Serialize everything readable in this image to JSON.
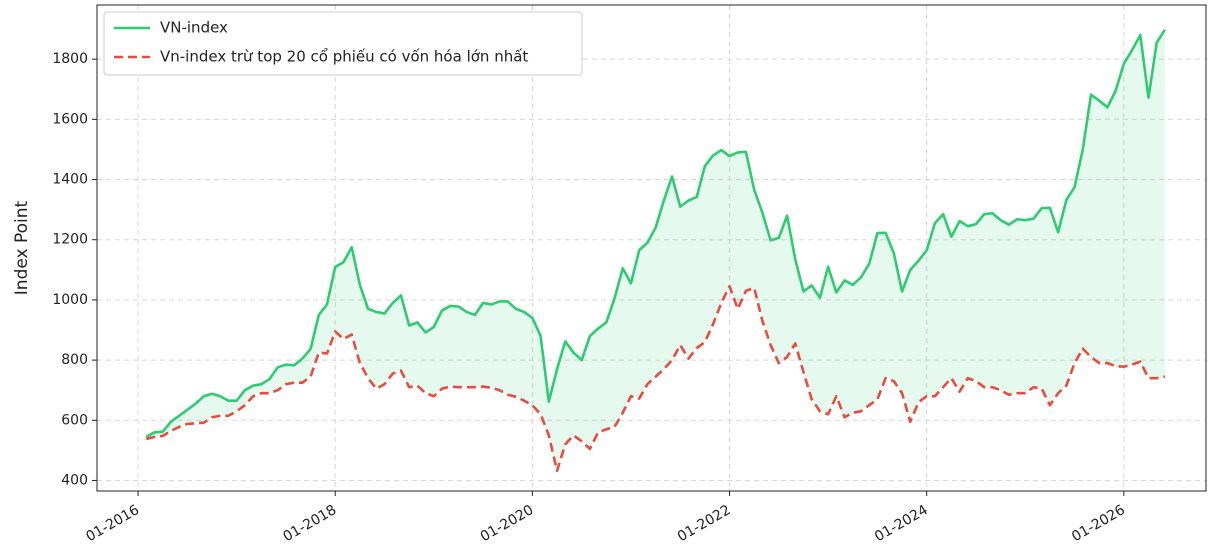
{
  "chart_data": {
    "type": "line",
    "ylabel": "Index Point",
    "x": [
      "02-2016",
      "03-2016",
      "04-2016",
      "05-2016",
      "06-2016",
      "07-2016",
      "08-2016",
      "09-2016",
      "10-2016",
      "11-2016",
      "12-2016",
      "01-2017",
      "02-2017",
      "03-2017",
      "04-2017",
      "05-2017",
      "06-2017",
      "07-2017",
      "08-2017",
      "09-2017",
      "10-2017",
      "11-2017",
      "12-2017",
      "01-2018",
      "02-2018",
      "03-2018",
      "04-2018",
      "05-2018",
      "06-2018",
      "07-2018",
      "08-2018",
      "09-2018",
      "10-2018",
      "11-2018",
      "12-2018",
      "01-2019",
      "02-2019",
      "03-2019",
      "04-2019",
      "05-2019",
      "06-2019",
      "07-2019",
      "08-2019",
      "09-2019",
      "10-2019",
      "11-2019",
      "12-2019",
      "01-2020",
      "02-2020",
      "03-2020",
      "04-2020",
      "05-2020",
      "06-2020",
      "07-2020",
      "08-2020",
      "09-2020",
      "10-2020",
      "11-2020",
      "12-2020",
      "01-2021",
      "02-2021",
      "03-2021",
      "04-2021",
      "05-2021",
      "06-2021",
      "07-2021",
      "08-2021",
      "09-2021",
      "10-2021",
      "11-2021",
      "12-2021",
      "01-2022",
      "02-2022",
      "03-2022",
      "04-2022",
      "05-2022",
      "06-2022",
      "07-2022",
      "08-2022",
      "09-2022",
      "10-2022",
      "11-2022",
      "12-2022",
      "01-2023",
      "02-2023",
      "03-2023",
      "04-2023",
      "05-2023",
      "06-2023",
      "07-2023",
      "08-2023",
      "09-2023",
      "10-2023",
      "11-2023",
      "12-2023",
      "01-2024",
      "02-2024",
      "03-2024",
      "04-2024",
      "05-2024",
      "06-2024",
      "07-2024",
      "08-2024",
      "09-2024",
      "10-2024",
      "11-2024",
      "12-2024",
      "01-2025",
      "02-2025",
      "03-2025",
      "04-2025",
      "05-2025",
      "06-2025",
      "07-2025",
      "08-2025",
      "09-2025",
      "10-2025",
      "11-2025",
      "12-2025",
      "01-2026",
      "02-2026",
      "03-2026",
      "04-2026",
      "05-2026",
      "06-2026"
    ],
    "series": [
      {
        "name": "VN-index",
        "color": "#2ecc71",
        "dash": false,
        "values": [
          545,
          560,
          562,
          595,
          615,
          635,
          655,
          680,
          688,
          680,
          665,
          665,
          700,
          715,
          720,
          737,
          776,
          785,
          783,
          805,
          837,
          950,
          985,
          1110,
          1125,
          1175,
          1050,
          970,
          960,
          955,
          990,
          1015,
          915,
          925,
          892,
          910,
          965,
          980,
          978,
          960,
          950,
          990,
          985,
          995,
          995,
          970,
          960,
          940,
          880,
          662,
          770,
          862,
          825,
          800,
          880,
          905,
          925,
          1005,
          1105,
          1055,
          1165,
          1190,
          1240,
          1330,
          1410,
          1310,
          1330,
          1342,
          1445,
          1480,
          1498,
          1478,
          1490,
          1492,
          1366,
          1290,
          1198,
          1206,
          1280,
          1135,
          1028,
          1048,
          1007,
          1110,
          1025,
          1065,
          1050,
          1075,
          1120,
          1222,
          1223,
          1155,
          1028,
          1100,
          1130,
          1165,
          1255,
          1285,
          1210,
          1262,
          1245,
          1252,
          1285,
          1288,
          1265,
          1250,
          1268,
          1265,
          1270,
          1305,
          1306,
          1225,
          1332,
          1375,
          1500,
          1682,
          1662,
          1640,
          1695,
          1785,
          1830,
          1880,
          1672,
          1855,
          1898
        ]
      },
      {
        "name": "Vn-index trừ top 20 cổ phiếu có vốn hóa lớn nhất",
        "color": "#e74c3c",
        "dash": true,
        "values": [
          538,
          545,
          548,
          565,
          578,
          588,
          590,
          592,
          610,
          615,
          615,
          630,
          650,
          680,
          690,
          690,
          700,
          720,
          725,
          725,
          745,
          825,
          822,
          895,
          870,
          885,
          790,
          740,
          705,
          720,
          755,
          765,
          710,
          715,
          690,
          680,
          705,
          712,
          710,
          710,
          710,
          712,
          708,
          700,
          685,
          678,
          665,
          650,
          620,
          550,
          432,
          520,
          550,
          530,
          505,
          560,
          570,
          578,
          625,
          680,
          672,
          720,
          745,
          770,
          800,
          850,
          805,
          840,
          860,
          920,
          990,
          1045,
          970,
          1030,
          1040,
          930,
          850,
          790,
          810,
          855,
          760,
          670,
          630,
          620,
          680,
          610,
          625,
          630,
          650,
          670,
          740,
          730,
          690,
          595,
          660,
          680,
          680,
          710,
          740,
          695,
          740,
          730,
          710,
          710,
          700,
          685,
          690,
          690,
          710,
          705,
          650,
          690,
          715,
          790,
          838,
          810,
          790,
          790,
          780,
          778,
          785,
          795,
          740,
          740,
          745
        ]
      }
    ],
    "fill_between": true,
    "fill_color": "#2ecc71",
    "xlim": [
      "08-2015",
      "11-2026"
    ],
    "xticks": [
      "01-2016",
      "01-2018",
      "01-2020",
      "01-2022",
      "01-2024",
      "01-2026"
    ],
    "ylim": [
      365,
      1980
    ],
    "yticks": [
      400,
      600,
      800,
      1000,
      1200,
      1400,
      1600,
      1800
    ],
    "grid": true,
    "legend": "upper left"
  }
}
